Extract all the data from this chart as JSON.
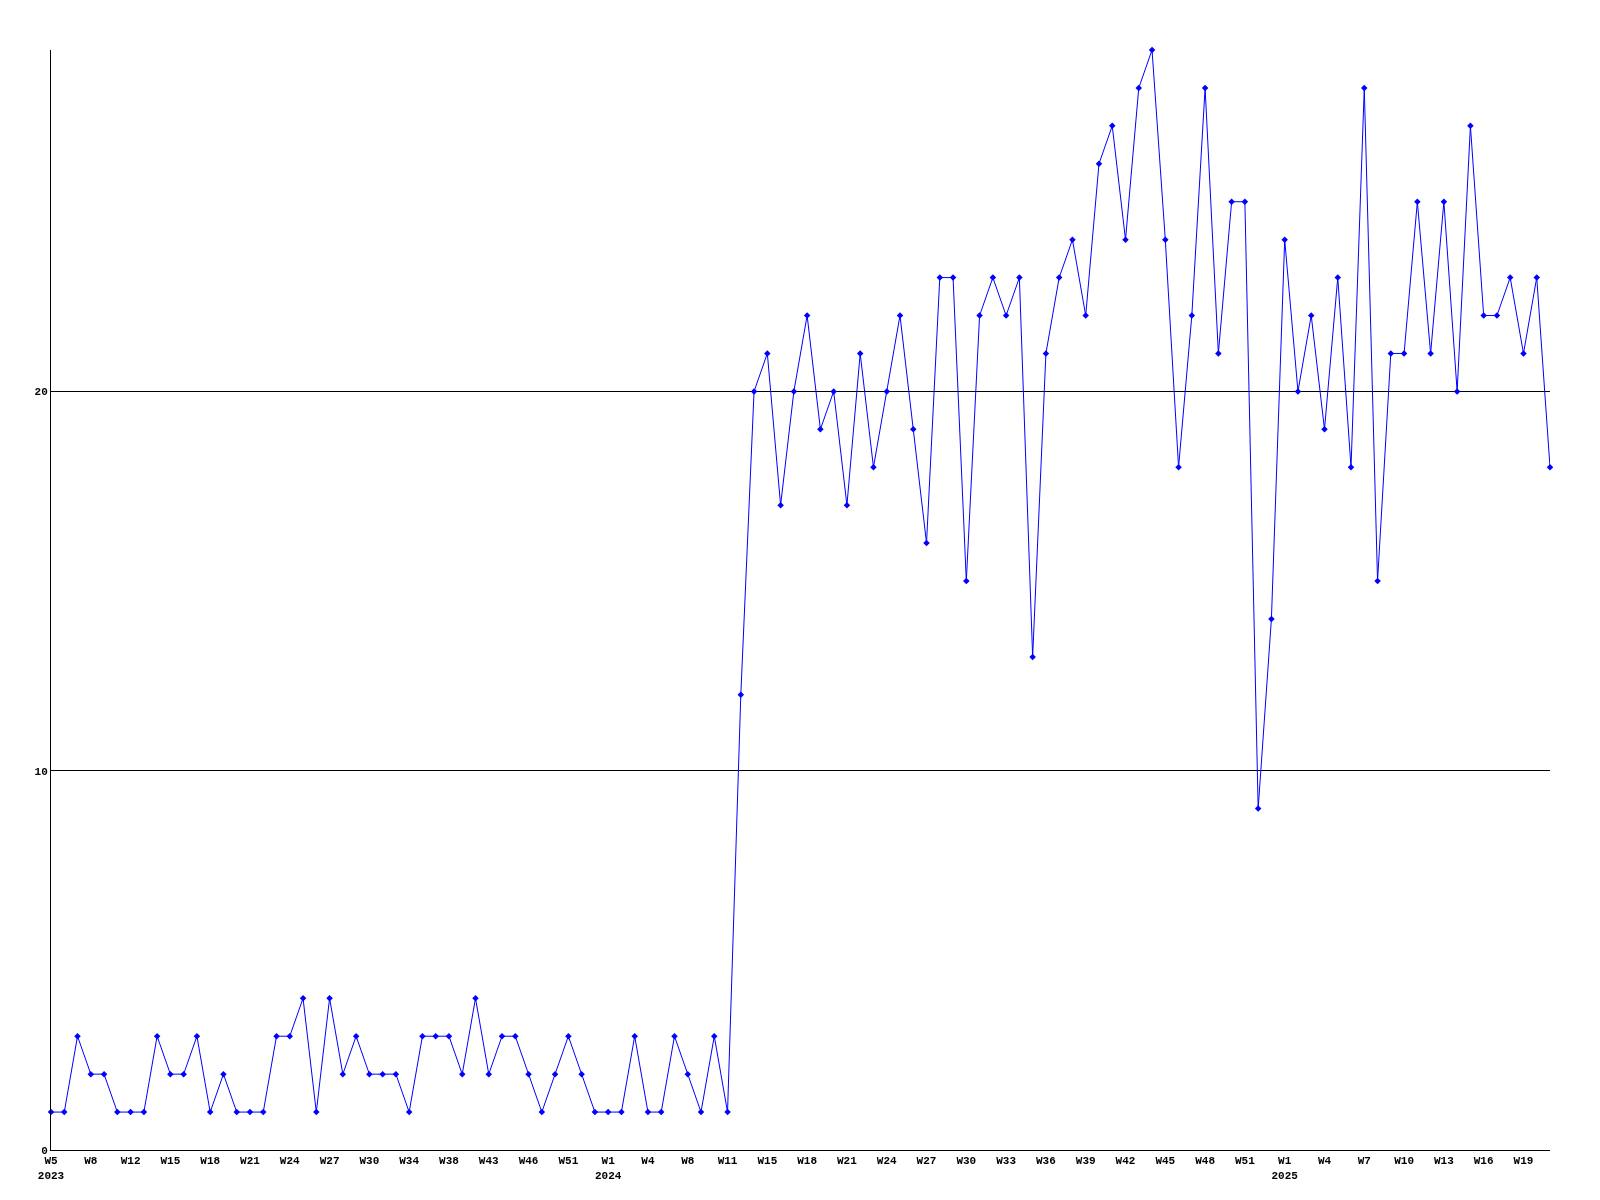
{
  "chart_data": {
    "type": "line",
    "categories": [
      "W5\n2023",
      null,
      null,
      "W8",
      null,
      null,
      "W12",
      null,
      null,
      "W15",
      null,
      null,
      "W18",
      null,
      null,
      "W21",
      null,
      null,
      "W24",
      null,
      null,
      "W27",
      null,
      null,
      "W30",
      null,
      null,
      "W34",
      null,
      null,
      "W38",
      null,
      null,
      "W43",
      null,
      null,
      "W46",
      null,
      null,
      "W51",
      null,
      null,
      "W1\n2024",
      null,
      null,
      "W4",
      null,
      null,
      "W8",
      null,
      null,
      "W11",
      null,
      null,
      "W15",
      null,
      null,
      "W18",
      null,
      null,
      "W21",
      null,
      null,
      "W24",
      null,
      null,
      "W27",
      null,
      null,
      "W30",
      null,
      null,
      "W33",
      null,
      null,
      "W36",
      null,
      null,
      "W39",
      null,
      null,
      "W42",
      null,
      null,
      "W45",
      null,
      null,
      "W48",
      null,
      null,
      "W51",
      null,
      null,
      "W1\n2025",
      null,
      null,
      "W4",
      null,
      null,
      "W7",
      null,
      null,
      "W10",
      null,
      null,
      "W13",
      null,
      null,
      "W16",
      null,
      null,
      "W19",
      null,
      null
    ],
    "series": [
      {
        "color": "#0000ff",
        "values": [
          1,
          1,
          3,
          2,
          2,
          1,
          1,
          1,
          3,
          2,
          2,
          3,
          1,
          2,
          1,
          1,
          1,
          3,
          3,
          4,
          1,
          4,
          2,
          3,
          2,
          2,
          2,
          1,
          3,
          3,
          3,
          2,
          4,
          2,
          3,
          3,
          2,
          1,
          2,
          3,
          2,
          1,
          1,
          1,
          3,
          1,
          1,
          3,
          2,
          1,
          3,
          1,
          12,
          20,
          21,
          17,
          20,
          22,
          19,
          20,
          17,
          21,
          18,
          20,
          22,
          19,
          16,
          23,
          23,
          15,
          22,
          23,
          22,
          23,
          13,
          21,
          23,
          24,
          22,
          26,
          27,
          24,
          28,
          29,
          24,
          18,
          22,
          28,
          21,
          25,
          25,
          9,
          14,
          24,
          20,
          22,
          19,
          23,
          18,
          28,
          15,
          21,
          21,
          25,
          21,
          25,
          20,
          27,
          22,
          22,
          23,
          21,
          23,
          18
        ]
      }
    ],
    "ylim": [
      0,
      29
    ],
    "yticks": [
      0,
      10,
      20
    ],
    "grid": "y",
    "marker": "diamond",
    "line_style": "solid"
  }
}
